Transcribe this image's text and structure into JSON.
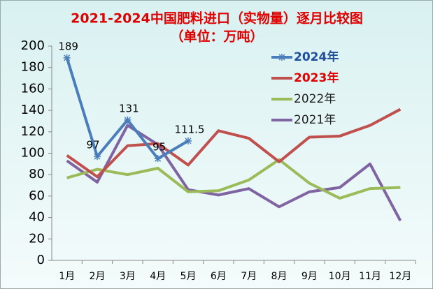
{
  "chart_data": {
    "type": "line",
    "title": "2021-2024中国肥料进口（实物量）逐月比较图",
    "subtitle": "（单位：万吨）",
    "categories": [
      "1月",
      "2月",
      "3月",
      "4月",
      "5月",
      "6月",
      "7月",
      "8月",
      "9月",
      "10月",
      "11月",
      "12月"
    ],
    "series": [
      {
        "name": "2024年",
        "color": "#4a7ebb",
        "values": [
          189,
          97,
          131,
          95,
          111.5,
          null,
          null,
          null,
          null,
          null,
          null,
          null
        ]
      },
      {
        "name": "2023年",
        "color": "#c0504d",
        "values": [
          98,
          78,
          107,
          109,
          89,
          121,
          114,
          92,
          115,
          116,
          126,
          141
        ]
      },
      {
        "name": "2022年",
        "color": "#9bbb59",
        "values": [
          77,
          85,
          80,
          86,
          64,
          65,
          75,
          94,
          72,
          58,
          67,
          68
        ]
      },
      {
        "name": "2021年",
        "color": "#8064a2",
        "values": [
          93,
          73,
          126,
          108,
          66,
          61,
          67,
          50,
          64,
          68,
          90,
          37
        ]
      }
    ],
    "ylim": [
      0,
      200
    ],
    "yticks": [
      0,
      20,
      40,
      60,
      80,
      100,
      120,
      140,
      160,
      180,
      200
    ],
    "grid": false,
    "legend": "upper right"
  }
}
